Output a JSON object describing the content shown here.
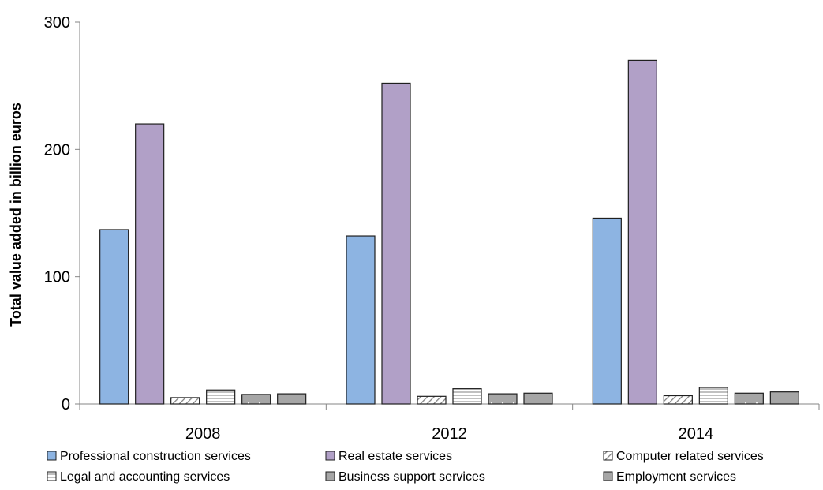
{
  "chart_data": {
    "type": "bar",
    "title": "",
    "xlabel": "",
    "ylabel": "Total value added in billion euros",
    "ylim": [
      0,
      300
    ],
    "yticks": [
      0,
      100,
      200,
      300
    ],
    "grid": false,
    "legend_position": "bottom",
    "categories": [
      "2008",
      "2012",
      "2014"
    ],
    "series": [
      {
        "name": "Professional construction services",
        "values": [
          137,
          132,
          146
        ],
        "color": "#8DB4E2",
        "pattern": "solid"
      },
      {
        "name": "Real estate services",
        "values": [
          220,
          252,
          270
        ],
        "color": "#B1A0C7",
        "pattern": "solid"
      },
      {
        "name": "Computer related services",
        "values": [
          5,
          6,
          6.5
        ],
        "color": "#FFFFFF",
        "pattern": "diagonal"
      },
      {
        "name": "Legal and accounting services",
        "values": [
          11,
          12,
          13
        ],
        "color": "#FFFFFF",
        "pattern": "horizontal"
      },
      {
        "name": "Business support services",
        "values": [
          7.5,
          8,
          8.5
        ],
        "color": "#A6A6A6",
        "pattern": "dots"
      },
      {
        "name": "Employment services",
        "values": [
          8,
          8.5,
          9.5
        ],
        "color": "#A6A6A6",
        "pattern": "solid"
      }
    ]
  }
}
